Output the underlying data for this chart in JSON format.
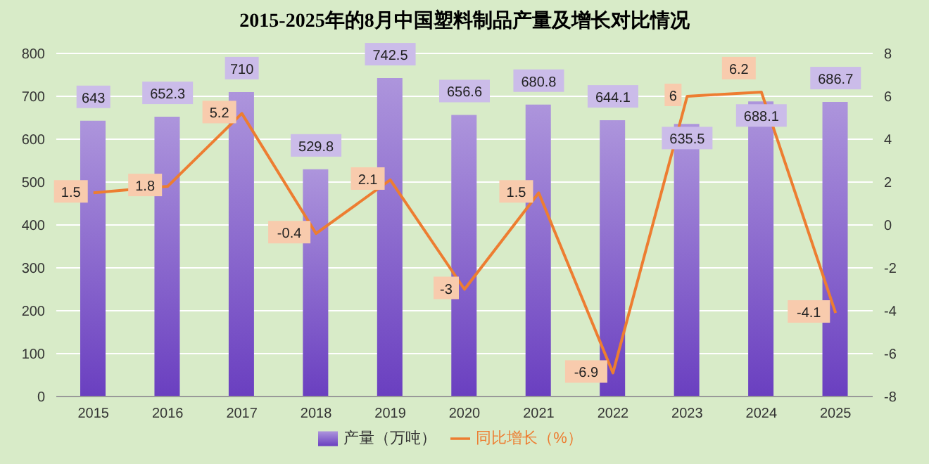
{
  "chart_data": {
    "type": "bar",
    "title": "2015-2025年的8月中国塑料制品产量及增长对比情况",
    "categories": [
      "2015",
      "2016",
      "2017",
      "2018",
      "2019",
      "2020",
      "2021",
      "2022",
      "2023",
      "2024",
      "2025"
    ],
    "series": [
      {
        "name": "产量（万吨）",
        "color": "#6a3fc0",
        "values": [
          643,
          652.3,
          710,
          529.8,
          742.5,
          656.6,
          680.8,
          644.1,
          635.5,
          688.1,
          686.7
        ]
      },
      {
        "name": "同比增长（%）",
        "type": "line",
        "axis": "y2",
        "color": "#ed7d31",
        "values": [
          1.5,
          1.8,
          5.2,
          -0.4,
          2.1,
          -3,
          1.5,
          -6.9,
          6,
          6.2,
          -4.1
        ]
      }
    ],
    "ylim": [
      0,
      800
    ],
    "yticks": [
      0,
      100,
      200,
      300,
      400,
      500,
      600,
      700,
      800
    ],
    "y2lim": [
      -8,
      8
    ],
    "y2ticks": [
      -8,
      -6,
      -4,
      -2,
      0,
      2,
      4,
      6,
      8
    ],
    "grid": "y",
    "legend": "bottom",
    "data_labels": true
  }
}
